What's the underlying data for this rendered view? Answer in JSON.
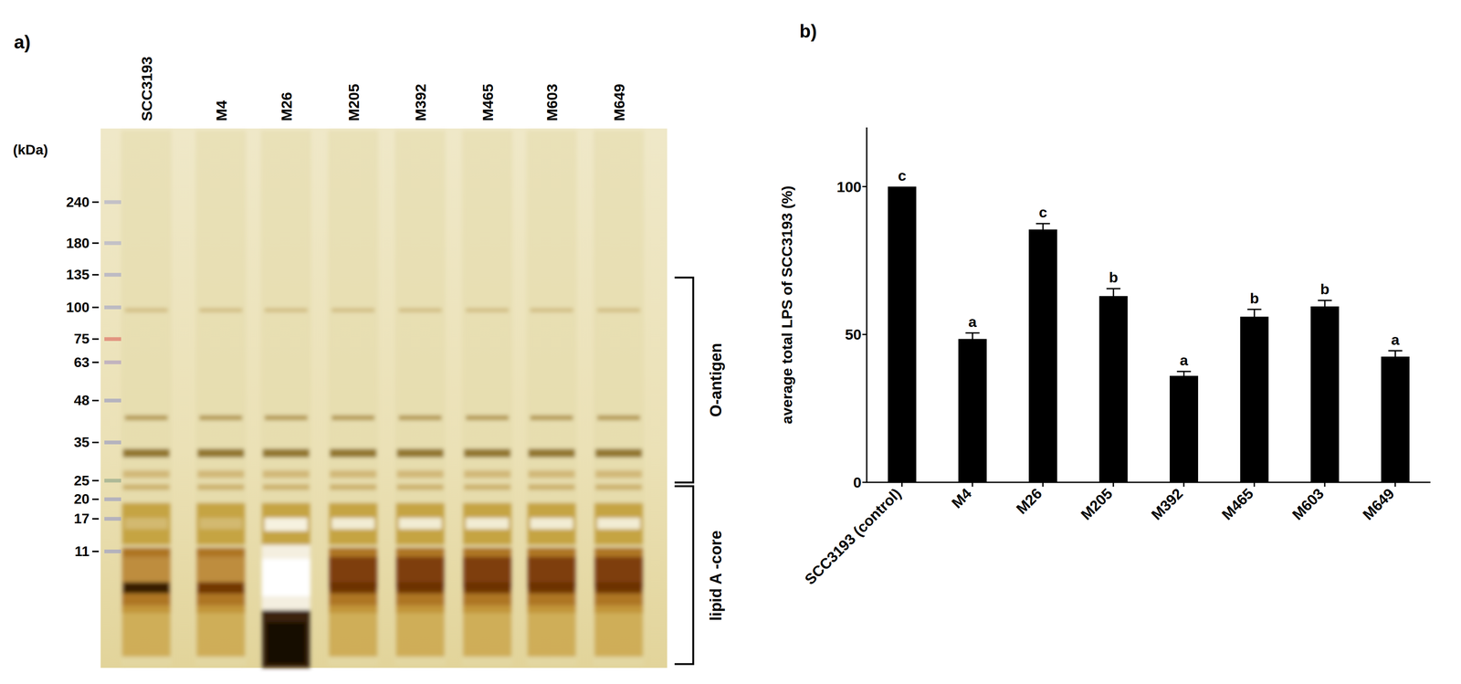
{
  "gel": {
    "letter": "a)",
    "lanes": [
      "SCC3193",
      "M4",
      "M26",
      "M205",
      "M392",
      "M465",
      "M603",
      "M649"
    ],
    "marker_unit": "(kDa)",
    "markers": [
      240,
      180,
      135,
      100,
      75,
      63,
      48,
      35,
      25,
      20,
      17,
      11
    ],
    "regions": [
      "O-antigen",
      "lipid A -core"
    ]
  },
  "chart_data": {
    "letter": "b)",
    "type": "bar",
    "y_label": "average total LPS of SCC3193 (%)",
    "categories": [
      "SCC3193 (control)",
      "M4",
      "M26",
      "M205",
      "M392",
      "M465",
      "M603",
      "M649"
    ],
    "values": [
      100,
      48.5,
      85.5,
      63,
      36,
      56,
      59.5,
      42.5
    ],
    "errors": [
      0,
      2,
      2,
      2.5,
      1.5,
      2.5,
      2,
      2
    ],
    "significance": [
      "c",
      "a",
      "c",
      "b",
      "a",
      "b",
      "b",
      "a"
    ],
    "color": "#000000",
    "ylim": [
      0,
      120
    ],
    "yticks": [
      0,
      50,
      100
    ]
  }
}
